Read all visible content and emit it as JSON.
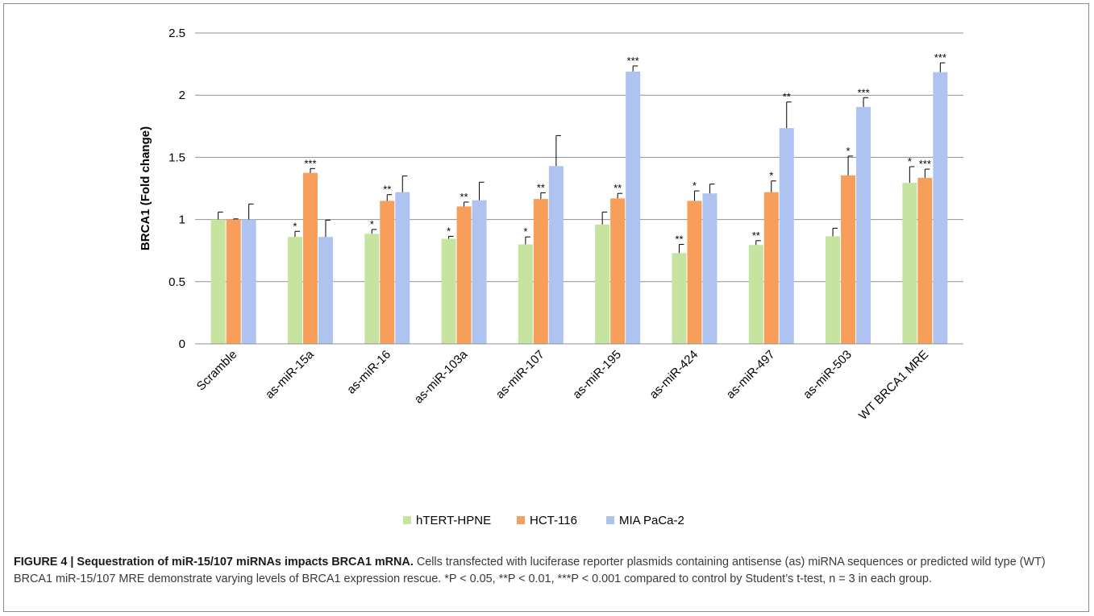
{
  "chart_data": {
    "type": "bar",
    "title": "",
    "xlabel": "",
    "ylabel": "BRCA1 (Fold change)",
    "ylim": [
      0,
      2.5
    ],
    "yticks": [
      "0",
      "0.5",
      "1",
      "1.5",
      "2",
      "2.5"
    ],
    "ytick_values": [
      0,
      0.5,
      1,
      1.5,
      2,
      2.5
    ],
    "grid": true,
    "legend_position": "bottom",
    "categories": [
      "Scramble",
      "as-miR-15a",
      "as-miR-16",
      "as-miR-103a",
      "as-miR-107",
      "as-miR-195",
      "as-miR-424",
      "as-miR-497",
      "as-miR-503",
      "WT BRCA1 MRE"
    ],
    "series": [
      {
        "name": "hTERT-HPNE",
        "color": "#c6e3a0",
        "values": [
          1.0,
          0.86,
          0.885,
          0.845,
          0.8,
          0.96,
          0.73,
          0.795,
          0.865,
          1.295
        ],
        "errors": [
          0.06,
          0.045,
          0.035,
          0.02,
          0.06,
          0.1,
          0.07,
          0.035,
          0.065,
          0.13
        ],
        "significance": [
          "",
          "*",
          "*",
          "*",
          "*",
          "",
          "**",
          "**",
          "",
          "*"
        ]
      },
      {
        "name": "HCT-116",
        "color": "#f79f5a",
        "values": [
          1.0,
          1.375,
          1.15,
          1.105,
          1.165,
          1.17,
          1.15,
          1.22,
          1.355,
          1.335
        ],
        "errors": [
          0.005,
          0.035,
          0.05,
          0.035,
          0.05,
          0.04,
          0.08,
          0.09,
          0.155,
          0.07
        ],
        "significance": [
          "",
          "***",
          "**",
          "**",
          "**",
          "**",
          "*",
          "*",
          "*",
          "***"
        ]
      },
      {
        "name": "MIA PaCa-2",
        "color": "#aec3f0",
        "values": [
          1.0,
          0.86,
          1.22,
          1.155,
          1.43,
          2.19,
          1.21,
          1.735,
          1.905,
          2.185
        ],
        "errors": [
          0.125,
          0.135,
          0.13,
          0.145,
          0.245,
          0.045,
          0.075,
          0.21,
          0.075,
          0.075
        ],
        "significance": [
          "",
          "",
          "",
          "",
          "",
          "***",
          "",
          "**",
          "***",
          "***"
        ]
      }
    ]
  },
  "caption": {
    "label": "FIGURE 4 | Sequestration of miR-15/107 miRNAs impacts BRCA1 mRNA.",
    "text": " Cells transfected with luciferase reporter plasmids containing antisense (as) miRNA sequences or predicted wild type (WT) BRCA1 miR-15/107 MRE demonstrate varying levels of BRCA1 expression rescue. *P < 0.05, **P < 0.01, ***P < 0.001 compared to control by Student’s t-test, n = 3 in each group."
  }
}
